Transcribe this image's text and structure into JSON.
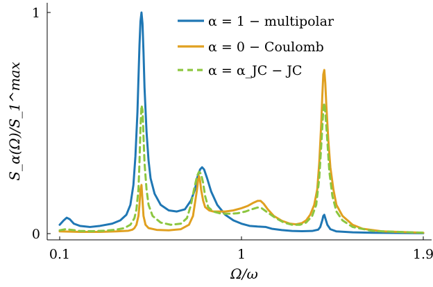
{
  "chart_data": {
    "type": "line",
    "xlabel": "Ω/ω",
    "ylabel": "S_α(Ω)/S_1^max",
    "xlim": [
      0.1,
      1.9
    ],
    "ylim": [
      0,
      1
    ],
    "xticks": [
      {
        "value": 0.1,
        "label": "0.1"
      },
      {
        "value": 1.0,
        "label": "1"
      },
      {
        "value": 1.9,
        "label": "1.9"
      }
    ],
    "yticks": [
      {
        "value": 0,
        "label": "0"
      },
      {
        "value": 1,
        "label": "1"
      }
    ],
    "legend_position": "top-right",
    "series": [
      {
        "name": "α = 1  − multipolar",
        "color": "#1f77b4",
        "dash": "solid",
        "points": [
          [
            0.1,
            0.04
          ],
          [
            0.12,
            0.06
          ],
          [
            0.135,
            0.072
          ],
          [
            0.15,
            0.065
          ],
          [
            0.17,
            0.045
          ],
          [
            0.2,
            0.035
          ],
          [
            0.25,
            0.03
          ],
          [
            0.3,
            0.035
          ],
          [
            0.36,
            0.045
          ],
          [
            0.4,
            0.06
          ],
          [
            0.43,
            0.085
          ],
          [
            0.45,
            0.13
          ],
          [
            0.465,
            0.22
          ],
          [
            0.475,
            0.35
          ],
          [
            0.485,
            0.55
          ],
          [
            0.49,
            0.7
          ],
          [
            0.495,
            0.85
          ],
          [
            0.5,
            0.96
          ],
          [
            0.505,
            1.0
          ],
          [
            0.51,
            0.95
          ],
          [
            0.515,
            0.82
          ],
          [
            0.52,
            0.66
          ],
          [
            0.53,
            0.46
          ],
          [
            0.54,
            0.33
          ],
          [
            0.55,
            0.25
          ],
          [
            0.57,
            0.18
          ],
          [
            0.6,
            0.13
          ],
          [
            0.64,
            0.105
          ],
          [
            0.68,
            0.1
          ],
          [
            0.72,
            0.11
          ],
          [
            0.75,
            0.15
          ],
          [
            0.77,
            0.2
          ],
          [
            0.78,
            0.25
          ],
          [
            0.795,
            0.29
          ],
          [
            0.805,
            0.3
          ],
          [
            0.815,
            0.29
          ],
          [
            0.83,
            0.25
          ],
          [
            0.85,
            0.19
          ],
          [
            0.88,
            0.13
          ],
          [
            0.92,
            0.085
          ],
          [
            0.96,
            0.06
          ],
          [
            1.0,
            0.045
          ],
          [
            1.04,
            0.035
          ],
          [
            1.08,
            0.032
          ],
          [
            1.12,
            0.03
          ],
          [
            1.15,
            0.022
          ],
          [
            1.2,
            0.016
          ],
          [
            1.25,
            0.012
          ],
          [
            1.3,
            0.011
          ],
          [
            1.35,
            0.012
          ],
          [
            1.38,
            0.018
          ],
          [
            1.39,
            0.03
          ],
          [
            1.4,
            0.06
          ],
          [
            1.405,
            0.08
          ],
          [
            1.41,
            0.085
          ],
          [
            1.415,
            0.07
          ],
          [
            1.425,
            0.04
          ],
          [
            1.44,
            0.02
          ],
          [
            1.47,
            0.01
          ],
          [
            1.55,
            0.006
          ],
          [
            1.65,
            0.004
          ],
          [
            1.75,
            0.003
          ],
          [
            1.9,
            0.002
          ]
        ]
      },
      {
        "name": "α = 0  − Coulomb",
        "color": "#e0a020",
        "dash": "solid",
        "points": [
          [
            0.1,
            0.01
          ],
          [
            0.2,
            0.008
          ],
          [
            0.3,
            0.008
          ],
          [
            0.38,
            0.01
          ],
          [
            0.44,
            0.013
          ],
          [
            0.46,
            0.018
          ],
          [
            0.47,
            0.025
          ],
          [
            0.48,
            0.04
          ],
          [
            0.49,
            0.08
          ],
          [
            0.495,
            0.13
          ],
          [
            0.5,
            0.2
          ],
          [
            0.505,
            0.22
          ],
          [
            0.51,
            0.15
          ],
          [
            0.515,
            0.08
          ],
          [
            0.525,
            0.04
          ],
          [
            0.54,
            0.025
          ],
          [
            0.58,
            0.017
          ],
          [
            0.64,
            0.015
          ],
          [
            0.7,
            0.02
          ],
          [
            0.74,
            0.04
          ],
          [
            0.76,
            0.08
          ],
          [
            0.77,
            0.14
          ],
          [
            0.78,
            0.2
          ],
          [
            0.785,
            0.24
          ],
          [
            0.79,
            0.26
          ],
          [
            0.795,
            0.24
          ],
          [
            0.8,
            0.2
          ],
          [
            0.81,
            0.15
          ],
          [
            0.82,
            0.12
          ],
          [
            0.84,
            0.105
          ],
          [
            0.86,
            0.1
          ],
          [
            0.88,
            0.1
          ],
          [
            0.92,
            0.1
          ],
          [
            0.96,
            0.105
          ],
          [
            1.0,
            0.115
          ],
          [
            1.03,
            0.125
          ],
          [
            1.06,
            0.14
          ],
          [
            1.08,
            0.148
          ],
          [
            1.095,
            0.148
          ],
          [
            1.11,
            0.135
          ],
          [
            1.13,
            0.11
          ],
          [
            1.16,
            0.08
          ],
          [
            1.2,
            0.058
          ],
          [
            1.24,
            0.045
          ],
          [
            1.27,
            0.042
          ],
          [
            1.3,
            0.048
          ],
          [
            1.32,
            0.06
          ],
          [
            1.34,
            0.085
          ],
          [
            1.36,
            0.13
          ],
          [
            1.375,
            0.2
          ],
          [
            1.385,
            0.32
          ],
          [
            1.395,
            0.5
          ],
          [
            1.4,
            0.62
          ],
          [
            1.405,
            0.72
          ],
          [
            1.41,
            0.74
          ],
          [
            1.415,
            0.68
          ],
          [
            1.42,
            0.58
          ],
          [
            1.43,
            0.42
          ],
          [
            1.44,
            0.3
          ],
          [
            1.455,
            0.2
          ],
          [
            1.47,
            0.13
          ],
          [
            1.5,
            0.08
          ],
          [
            1.55,
            0.04
          ],
          [
            1.6,
            0.022
          ],
          [
            1.7,
            0.01
          ],
          [
            1.9,
            0.004
          ]
        ]
      },
      {
        "name": "α = α_JC  − JC",
        "color": "#8cc63f",
        "dash": "dashed",
        "points": [
          [
            0.1,
            0.015
          ],
          [
            0.13,
            0.02
          ],
          [
            0.16,
            0.017
          ],
          [
            0.2,
            0.012
          ],
          [
            0.26,
            0.011
          ],
          [
            0.32,
            0.013
          ],
          [
            0.38,
            0.018
          ],
          [
            0.42,
            0.025
          ],
          [
            0.45,
            0.04
          ],
          [
            0.47,
            0.07
          ],
          [
            0.48,
            0.11
          ],
          [
            0.49,
            0.2
          ],
          [
            0.495,
            0.32
          ],
          [
            0.5,
            0.48
          ],
          [
            0.505,
            0.58
          ],
          [
            0.51,
            0.56
          ],
          [
            0.515,
            0.44
          ],
          [
            0.52,
            0.32
          ],
          [
            0.53,
            0.2
          ],
          [
            0.54,
            0.13
          ],
          [
            0.56,
            0.08
          ],
          [
            0.6,
            0.05
          ],
          [
            0.65,
            0.04
          ],
          [
            0.7,
            0.045
          ],
          [
            0.73,
            0.07
          ],
          [
            0.75,
            0.13
          ],
          [
            0.765,
            0.2
          ],
          [
            0.78,
            0.26
          ],
          [
            0.79,
            0.28
          ],
          [
            0.8,
            0.27
          ],
          [
            0.81,
            0.23
          ],
          [
            0.82,
            0.17
          ],
          [
            0.835,
            0.12
          ],
          [
            0.86,
            0.1
          ],
          [
            0.9,
            0.09
          ],
          [
            0.94,
            0.09
          ],
          [
            0.98,
            0.092
          ],
          [
            1.02,
            0.1
          ],
          [
            1.05,
            0.11
          ],
          [
            1.08,
            0.118
          ],
          [
            1.1,
            0.115
          ],
          [
            1.13,
            0.095
          ],
          [
            1.17,
            0.07
          ],
          [
            1.21,
            0.05
          ],
          [
            1.25,
            0.04
          ],
          [
            1.29,
            0.04
          ],
          [
            1.32,
            0.05
          ],
          [
            1.35,
            0.08
          ],
          [
            1.37,
            0.13
          ],
          [
            1.385,
            0.25
          ],
          [
            1.395,
            0.4
          ],
          [
            1.405,
            0.56
          ],
          [
            1.41,
            0.59
          ],
          [
            1.415,
            0.55
          ],
          [
            1.425,
            0.42
          ],
          [
            1.435,
            0.28
          ],
          [
            1.45,
            0.17
          ],
          [
            1.47,
            0.1
          ],
          [
            1.5,
            0.06
          ],
          [
            1.55,
            0.03
          ],
          [
            1.65,
            0.012
          ],
          [
            1.9,
            0.004
          ]
        ]
      }
    ]
  }
}
